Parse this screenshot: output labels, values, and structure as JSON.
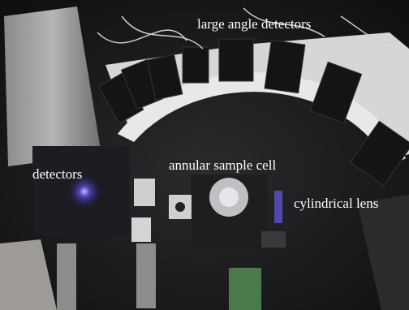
{
  "labels": {
    "large_angle": "large angle detectors",
    "detectors": "detectors",
    "sample_cell": "annular sample cell",
    "lens": "cylindrical lens"
  }
}
